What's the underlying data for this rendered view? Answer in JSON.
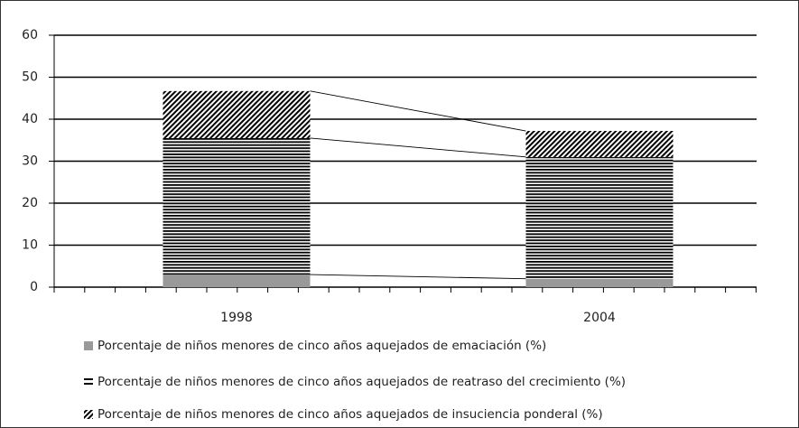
{
  "chart_data": {
    "type": "stacked_bar",
    "categories": [
      "1998",
      "2004"
    ],
    "series": [
      {
        "name": "Porcentaje de niños menores de cinco años aquejados de emaciación (%)",
        "color": "#999999",
        "pattern": "solid",
        "values": [
          3.0,
          2.0
        ]
      },
      {
        "name": "Porcentaje de niños menores de cinco años aquejados de reatraso del crecimiento (%)",
        "color": "#000000",
        "pattern": "horizontal",
        "values": [
          32.5,
          29.0
        ]
      },
      {
        "name": "Porcentaje de niños menores de cinco años aquejados de insuciencia ponderal (%)",
        "color": "#000000",
        "pattern": "diagonal",
        "values": [
          11.2,
          6.2
        ]
      }
    ],
    "ylim": [
      0,
      60
    ],
    "yticks": [
      0,
      10,
      20,
      30,
      40,
      50,
      60
    ],
    "grid": true
  }
}
